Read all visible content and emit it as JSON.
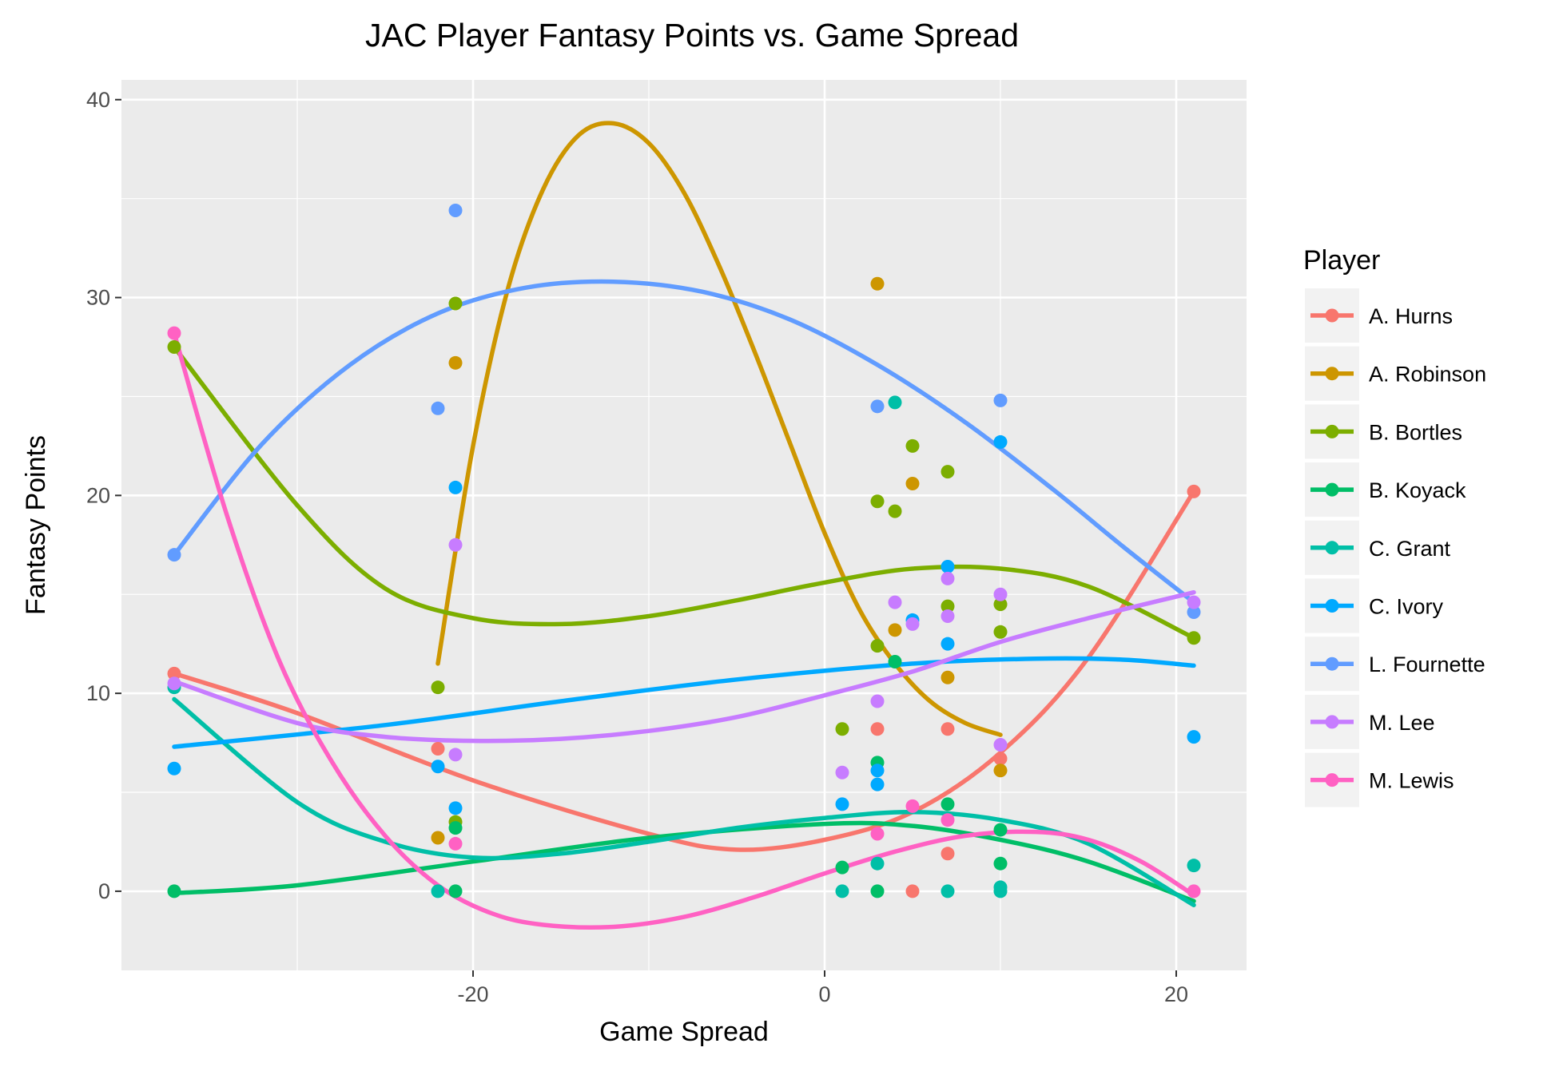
{
  "chart_data": {
    "type": "scatter",
    "title": "JAC Player Fantasy Points vs. Game Spread",
    "xlabel": "Game Spread",
    "ylabel": "Fantasy Points",
    "xlim": [
      -40,
      24
    ],
    "ylim": [
      -4,
      41
    ],
    "x_ticks": [
      -20,
      0,
      20
    ],
    "y_ticks": [
      0,
      10,
      20,
      30,
      40
    ],
    "grid": true,
    "legend_title": "Player",
    "legend_position": "right",
    "series": [
      {
        "name": "A. Hurns",
        "color": "#F8766D",
        "points": [
          [
            -37,
            11
          ],
          [
            -22,
            7.2
          ],
          [
            3,
            8.2
          ],
          [
            5,
            0
          ],
          [
            7,
            1.9
          ],
          [
            7,
            8.2
          ],
          [
            10,
            6.7
          ],
          [
            21,
            20.2
          ]
        ],
        "smooth": [
          [
            -37,
            11
          ],
          [
            -30,
            9
          ],
          [
            -20,
            5.6
          ],
          [
            -10,
            2.9
          ],
          [
            -5,
            2.1
          ],
          [
            0,
            2.6
          ],
          [
            5,
            4
          ],
          [
            10,
            7
          ],
          [
            15,
            11.8
          ],
          [
            21,
            20.2
          ]
        ]
      },
      {
        "name": "A. Robinson",
        "color": "#CD9600",
        "points": [
          [
            -22,
            2.7
          ],
          [
            -21,
            26.7
          ],
          [
            3,
            30.7
          ],
          [
            4,
            13.2
          ],
          [
            5,
            20.6
          ],
          [
            7,
            10.8
          ],
          [
            10,
            6.1
          ]
        ],
        "smooth": [
          [
            -22,
            11.5
          ],
          [
            -20,
            22.5
          ],
          [
            -18,
            30.5
          ],
          [
            -16,
            35.5
          ],
          [
            -14,
            38.2
          ],
          [
            -12,
            38.8
          ],
          [
            -10,
            37.8
          ],
          [
            -8,
            35.3
          ],
          [
            -6,
            31.6
          ],
          [
            -4,
            27.3
          ],
          [
            -2,
            22.7
          ],
          [
            0,
            18.1
          ],
          [
            2,
            14.2
          ],
          [
            4,
            11.5
          ],
          [
            6,
            9.6
          ],
          [
            8,
            8.5
          ],
          [
            10,
            7.9
          ]
        ]
      },
      {
        "name": "B. Bortles",
        "color": "#7CAE00",
        "points": [
          [
            -37,
            27.5
          ],
          [
            -22,
            10.3
          ],
          [
            -21,
            29.7
          ],
          [
            -21,
            3.5
          ],
          [
            1,
            8.2
          ],
          [
            3,
            19.7
          ],
          [
            3,
            12.4
          ],
          [
            4,
            19.2
          ],
          [
            5,
            22.5
          ],
          [
            7,
            21.2
          ],
          [
            7,
            14.4
          ],
          [
            10,
            14.5
          ],
          [
            10,
            13.1
          ],
          [
            21,
            12.8
          ]
        ],
        "smooth": [
          [
            -37,
            27.5
          ],
          [
            -30,
            19.5
          ],
          [
            -25,
            15.3
          ],
          [
            -20,
            13.8
          ],
          [
            -15,
            13.5
          ],
          [
            -10,
            13.9
          ],
          [
            -5,
            14.7
          ],
          [
            0,
            15.6
          ],
          [
            5,
            16.3
          ],
          [
            10,
            16.3
          ],
          [
            15,
            15.4
          ],
          [
            21,
            12.8
          ]
        ]
      },
      {
        "name": "B. Koyack",
        "color": "#00BE67",
        "points": [
          [
            -37,
            0
          ],
          [
            -21,
            0
          ],
          [
            -21,
            3.2
          ],
          [
            1,
            1.2
          ],
          [
            3,
            0
          ],
          [
            3,
            6.5
          ],
          [
            4,
            11.6
          ],
          [
            7,
            4.4
          ],
          [
            10,
            3.1
          ],
          [
            10,
            1.4
          ]
        ],
        "smooth": [
          [
            -37,
            -0.1
          ],
          [
            -30,
            0.3
          ],
          [
            -20,
            1.5
          ],
          [
            -10,
            2.7
          ],
          [
            0,
            3.4
          ],
          [
            5,
            3.3
          ],
          [
            10,
            2.6
          ],
          [
            15,
            1.5
          ],
          [
            21,
            -0.5
          ]
        ]
      },
      {
        "name": "C. Grant",
        "color": "#00BFA7",
        "points": [
          [
            -37,
            10.3
          ],
          [
            -22,
            0
          ],
          [
            1,
            0
          ],
          [
            3,
            1.4
          ],
          [
            4,
            24.7
          ],
          [
            7,
            0
          ],
          [
            10,
            0.2
          ],
          [
            10,
            0
          ],
          [
            21,
            1.3
          ]
        ],
        "smooth": [
          [
            -37,
            9.7
          ],
          [
            -30,
            4.5
          ],
          [
            -25,
            2.5
          ],
          [
            -20,
            1.7
          ],
          [
            -15,
            1.9
          ],
          [
            -10,
            2.5
          ],
          [
            -5,
            3.2
          ],
          [
            0,
            3.7
          ],
          [
            5,
            4
          ],
          [
            10,
            3.6
          ],
          [
            15,
            2.4
          ],
          [
            21,
            -0.7
          ]
        ]
      },
      {
        "name": "C. Ivory",
        "color": "#00A9FF",
        "points": [
          [
            -37,
            6.2
          ],
          [
            -22,
            6.3
          ],
          [
            -21,
            20.4
          ],
          [
            -21,
            4.2
          ],
          [
            1,
            4.4
          ],
          [
            3,
            5.4
          ],
          [
            3,
            6.1
          ],
          [
            5,
            13.7
          ],
          [
            7,
            16.4
          ],
          [
            7,
            12.5
          ],
          [
            10,
            22.7
          ],
          [
            21,
            7.8
          ]
        ],
        "smooth": [
          [
            -37,
            7.3
          ],
          [
            -25,
            8.4
          ],
          [
            -15,
            9.6
          ],
          [
            -5,
            10.7
          ],
          [
            5,
            11.5
          ],
          [
            12,
            11.75
          ],
          [
            17,
            11.7
          ],
          [
            21,
            11.4
          ]
        ]
      },
      {
        "name": "L. Fournette",
        "color": "#619CFF",
        "points": [
          [
            -37,
            17
          ],
          [
            -22,
            24.4
          ],
          [
            -21,
            34.4
          ],
          [
            3,
            24.5
          ],
          [
            10,
            24.8
          ],
          [
            21,
            14.1
          ]
        ],
        "smooth": [
          [
            -37,
            17
          ],
          [
            -32,
            22.6
          ],
          [
            -27,
            26.6
          ],
          [
            -22,
            29.2
          ],
          [
            -17,
            30.5
          ],
          [
            -12,
            30.8
          ],
          [
            -7,
            30.3
          ],
          [
            -2,
            28.9
          ],
          [
            3,
            26.6
          ],
          [
            8,
            23.7
          ],
          [
            13,
            20.3
          ],
          [
            17,
            17.4
          ],
          [
            21,
            14.6
          ]
        ]
      },
      {
        "name": "M. Lee",
        "color": "#C77CFF",
        "points": [
          [
            -37,
            10.5
          ],
          [
            -21,
            17.5
          ],
          [
            -21,
            6.9
          ],
          [
            1,
            6
          ],
          [
            3,
            9.6
          ],
          [
            4,
            14.6
          ],
          [
            5,
            13.5
          ],
          [
            7,
            15.8
          ],
          [
            7,
            13.9
          ],
          [
            10,
            15
          ],
          [
            10,
            7.4
          ],
          [
            21,
            14.6
          ]
        ],
        "smooth": [
          [
            -37,
            10.6
          ],
          [
            -30,
            8.5
          ],
          [
            -25,
            7.8
          ],
          [
            -20,
            7.6
          ],
          [
            -15,
            7.7
          ],
          [
            -10,
            8.1
          ],
          [
            -5,
            8.8
          ],
          [
            0,
            9.9
          ],
          [
            5,
            11.1
          ],
          [
            10,
            12.6
          ],
          [
            15,
            13.8
          ],
          [
            21,
            15.1
          ]
        ]
      },
      {
        "name": "M. Lewis",
        "color": "#FF61C3",
        "points": [
          [
            -37,
            28.2
          ],
          [
            -21,
            2.4
          ],
          [
            3,
            2.9
          ],
          [
            5,
            4.3
          ],
          [
            7,
            3.6
          ],
          [
            21,
            0
          ]
        ],
        "smooth": [
          [
            -37,
            28.2
          ],
          [
            -34,
            19
          ],
          [
            -31,
            11.6
          ],
          [
            -28,
            6.5
          ],
          [
            -25,
            2.8
          ],
          [
            -22,
            0.3
          ],
          [
            -19,
            -1.1
          ],
          [
            -16,
            -1.7
          ],
          [
            -12,
            -1.8
          ],
          [
            -8,
            -1.3
          ],
          [
            -4,
            -0.3
          ],
          [
            0,
            0.9
          ],
          [
            4,
            2
          ],
          [
            8,
            2.8
          ],
          [
            12,
            3
          ],
          [
            15,
            2.6
          ],
          [
            18,
            1.5
          ],
          [
            21,
            -0.2
          ]
        ]
      }
    ]
  }
}
